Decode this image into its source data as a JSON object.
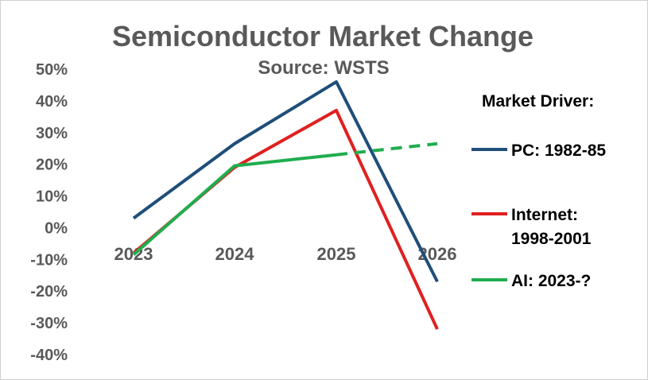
{
  "chart_data": {
    "type": "line",
    "title": "Semiconductor Market Change",
    "subtitle": "Source: WSTS",
    "categories": [
      "2023",
      "2024",
      "2025",
      "2026"
    ],
    "y_tick_labels": [
      "50%",
      "40%",
      "30%",
      "20%",
      "10%",
      "0%",
      "-10%",
      "-20%",
      "-30%",
      "-40%"
    ],
    "ylim": [
      -40,
      50
    ],
    "grid": false,
    "legend_title": "Market Driver:",
    "legend_position": "right",
    "series": [
      {
        "name": "PC: 1982-85",
        "name_lines": [
          "PC: 1982-85"
        ],
        "color": "#1f4e79",
        "values": [
          3,
          26.5,
          46,
          -17
        ],
        "dashed_from_index": null
      },
      {
        "name": "Internet: 1998-2001",
        "name_lines": [
          "Internet:",
          "1998-2001"
        ],
        "color": "#e02020",
        "values": [
          -8,
          19,
          37,
          -32
        ],
        "dashed_from_index": null
      },
      {
        "name": "AI: 2023-?",
        "name_lines": [
          "AI: 2023-?"
        ],
        "color": "#1fad4e",
        "values": [
          -8.5,
          19.5,
          23,
          26.5
        ],
        "dashed_from_index": 2
      }
    ]
  }
}
